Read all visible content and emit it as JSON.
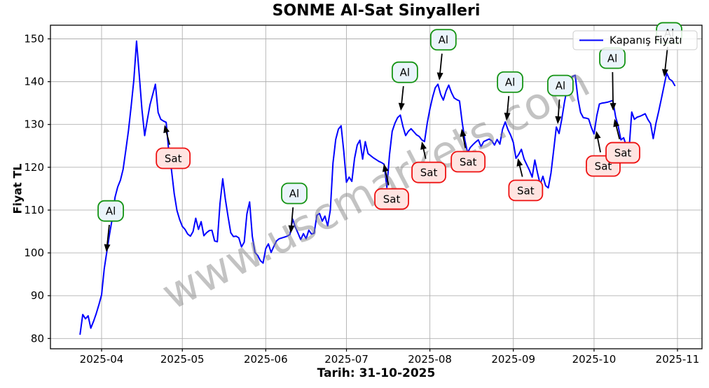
{
  "title": "SONME Al-Sat Sinyalleri",
  "xlabel": "Tarih: 31-10-2025",
  "ylabel": "Fiyat TL",
  "watermark": "www.uscmarkets.com",
  "legend": {
    "label": "Kapanış Fiyatı"
  },
  "chart_data": {
    "type": "line",
    "title": "SONME Al-Sat Sinyalleri",
    "xlabel": "Tarih: 31-10-2025",
    "ylabel": "Fiyat TL",
    "grid": true,
    "legend_position": "upper right",
    "ylim": [
      77.5,
      153.3
    ],
    "y_ticks": [
      80,
      90,
      100,
      110,
      120,
      130,
      140,
      150
    ],
    "x_ticks": [
      {
        "label": "2025-04",
        "day": 8
      },
      {
        "label": "2025-05",
        "day": 38
      },
      {
        "label": "2025-06",
        "day": 69
      },
      {
        "label": "2025-07",
        "day": 99
      },
      {
        "label": "2025-08",
        "day": 130
      },
      {
        "label": "2025-09",
        "day": 161
      },
      {
        "label": "2025-10",
        "day": 191
      },
      {
        "label": "2025-11",
        "day": 222
      }
    ],
    "series": [
      {
        "name": "Kapanış Fiyatı",
        "color": "#0000ff",
        "start_date": "2025-03-24",
        "sampling": "daily, day 0 = 2025-03-24, day 221 = 2025-10-31",
        "values": [
          81.0,
          85.6,
          84.6,
          85.3,
          82.4,
          84.0,
          85.8,
          87.9,
          90.2,
          96.3,
          100.5,
          104.5,
          108.2,
          113.0,
          115.4,
          117.0,
          119.5,
          124.0,
          128.6,
          134.4,
          140.5,
          149.5,
          141.5,
          133.5,
          127.4,
          131.1,
          134.6,
          137.0,
          139.4,
          132.8,
          131.2,
          130.8,
          130.5,
          123.5,
          119.2,
          113.8,
          109.9,
          107.8,
          106.2,
          105.5,
          104.4,
          103.9,
          105.0,
          108.1,
          105.5,
          107.3,
          104.0,
          104.7,
          105.2,
          105.3,
          102.8,
          102.6,
          111.5,
          117.3,
          112.5,
          108.5,
          104.7,
          103.8,
          103.9,
          103.5,
          101.4,
          102.5,
          109.1,
          111.9,
          103.9,
          100.1,
          99.4,
          98.2,
          97.6,
          101.0,
          102.1,
          100.1,
          101.5,
          102.8,
          103.3,
          103.5,
          103.7,
          103.9,
          104.3,
          107.9,
          106.0,
          104.6,
          103.1,
          104.5,
          103.3,
          105.3,
          104.4,
          104.6,
          108.8,
          109.2,
          107.4,
          108.6,
          106.3,
          110.0,
          121.0,
          126.5,
          128.9,
          129.7,
          123.7,
          116.5,
          117.7,
          116.7,
          122.1,
          125.2,
          126.3,
          121.9,
          126.0,
          123.2,
          122.7,
          122.2,
          121.8,
          121.4,
          121.1,
          120.7,
          115.3,
          123.0,
          128.4,
          130.3,
          131.6,
          132.2,
          129.5,
          127.4,
          128.4,
          129.0,
          128.3,
          127.6,
          127.2,
          126.4,
          126.0,
          130.3,
          133.6,
          136.4,
          138.6,
          139.4,
          137.0,
          135.7,
          137.8,
          139.2,
          137.5,
          136.2,
          135.8,
          135.5,
          130.5,
          126.3,
          123.4,
          124.6,
          125.3,
          125.9,
          126.4,
          124.8,
          126.0,
          126.3,
          126.6,
          126.2,
          125.2,
          126.5,
          125.4,
          128.9,
          130.6,
          128.8,
          127.5,
          125.8,
          122.1,
          123.0,
          124.2,
          121.9,
          120.6,
          119.3,
          117.7,
          121.7,
          118.6,
          116.0,
          117.9,
          115.7,
          115.2,
          118.7,
          124.0,
          129.4,
          127.9,
          131.2,
          135.2,
          138.5,
          140.3,
          141.2,
          141.5,
          136.1,
          132.8,
          131.6,
          131.5,
          131.3,
          129.3,
          127.8,
          132.0,
          134.8,
          135.0,
          135.1,
          135.2,
          135.4,
          135.6,
          131.8,
          129.5,
          126.4,
          126.9,
          125.0,
          124.2,
          132.9,
          131.2,
          131.7,
          131.9,
          132.2,
          132.5,
          131.2,
          130.2,
          126.7,
          130.3,
          133.0,
          136.0,
          139.0,
          142.0,
          140.6,
          140.2,
          139.1
        ]
      }
    ],
    "signals": {
      "buy_label": "Al",
      "sell_label": "Sat",
      "buy": [
        {
          "day": 9.8,
          "price": 100.2,
          "label_day": 11.4,
          "label_price": 109.8
        },
        {
          "day": 78.3,
          "price": 104.6,
          "label_day": 79.6,
          "label_price": 113.9
        },
        {
          "day": 119.2,
          "price": 133.2,
          "label_day": 120.7,
          "label_price": 142.2
        },
        {
          "day": 133.5,
          "price": 140.3,
          "label_day": 135.0,
          "label_price": 149.8
        },
        {
          "day": 158.5,
          "price": 130.9,
          "label_day": 159.8,
          "label_price": 139.9
        },
        {
          "day": 177.5,
          "price": 130.1,
          "label_day": 178.5,
          "label_price": 139.1
        },
        {
          "day": 198.1,
          "price": 133.2,
          "label_day": 197.8,
          "label_price": 145.5
        },
        {
          "day": 217.1,
          "price": 141.1,
          "label_day": 218.9,
          "label_price": 151.4
        }
      ],
      "sell": [
        {
          "day": 31.4,
          "price": 129.9,
          "label_day": 34.6,
          "label_price": 122.1
        },
        {
          "day": 112.9,
          "price": 120.8,
          "label_day": 115.8,
          "label_price": 112.6
        },
        {
          "day": 127.0,
          "price": 126.0,
          "label_day": 129.6,
          "label_price": 118.8
        },
        {
          "day": 141.8,
          "price": 129.0,
          "label_day": 144.2,
          "label_price": 121.3
        },
        {
          "day": 162.7,
          "price": 122.1,
          "label_day": 165.6,
          "label_price": 114.6
        },
        {
          "day": 191.8,
          "price": 128.5,
          "label_day": 194.4,
          "label_price": 120.3
        },
        {
          "day": 198.6,
          "price": 131.3,
          "label_day": 201.7,
          "label_price": 123.4
        }
      ]
    },
    "colors": {
      "line": "#0000ff",
      "grid": "#b0b0b0",
      "spine": "#000000",
      "buy_box_fill": "#eaf4fb",
      "buy_box_edge": "#149414",
      "sell_box_fill": "#ffe4e1",
      "sell_box_edge": "#ee1111",
      "arrow": "#000000",
      "legend_edge": "#cccccc",
      "watermark": "#888888"
    }
  }
}
